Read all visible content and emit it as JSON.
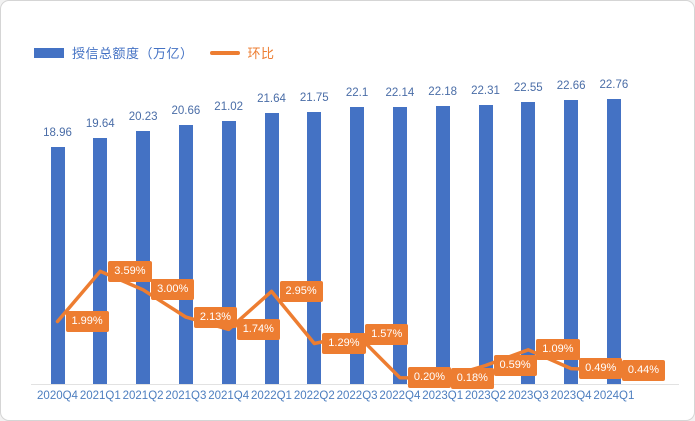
{
  "colors": {
    "bar": "#4472C4",
    "line": "#ED7D31",
    "bar_value_label": "#4a6da7",
    "axis_tick_label": "#4d7ebf",
    "point_label_bg": "#ED7D31",
    "point_label_text": "#ffffff",
    "axis_line": "#e2e2e2",
    "legend_bar_text": "#4472C4",
    "legend_line_text": "#ED7D31"
  },
  "chart_data": {
    "type": "combo",
    "categories": [
      "2020Q4",
      "2021Q1",
      "2021Q2",
      "2021Q3",
      "2021Q4",
      "2022Q1",
      "2022Q2",
      "2022Q3",
      "2022Q4",
      "2023Q1",
      "2023Q2",
      "2023Q3",
      "2023Q4",
      "2024Q1"
    ],
    "series": [
      {
        "name": "授信总额度（万亿）",
        "type": "bar",
        "values": [
          18.96,
          19.64,
          20.23,
          20.66,
          21.02,
          21.64,
          21.75,
          22.1,
          22.14,
          22.18,
          22.31,
          22.55,
          22.66,
          22.76
        ],
        "labels": [
          "18.96",
          "19.64",
          "20.23",
          "20.66",
          "21.02",
          "21.64",
          "21.75",
          "22.1",
          "22.14",
          "22.18",
          "22.31",
          "22.55",
          "22.66",
          "22.76"
        ]
      },
      {
        "name": "环比",
        "type": "line",
        "values": [
          1.99,
          3.59,
          3.0,
          2.13,
          1.74,
          2.95,
          1.29,
          1.57,
          0.2,
          0.18,
          0.59,
          1.09,
          0.49,
          0.44
        ],
        "labels": [
          "1.99%",
          "3.59%",
          "3.00%",
          "2.13%",
          "1.74%",
          "2.95%",
          "1.29%",
          "1.57%",
          "0.20%",
          "0.18%",
          "0.59%",
          "1.09%",
          "0.49%",
          "0.44%"
        ]
      }
    ],
    "title": "",
    "xlabel": "",
    "ylabel": "",
    "primary_axis": {
      "min": 0,
      "visible": false
    },
    "secondary_axis": {
      "min": 0,
      "max": 4,
      "unit": "%",
      "visible": false
    },
    "gridlines": false,
    "legend_position": "top-left",
    "point_label_position": "right-of-point"
  }
}
